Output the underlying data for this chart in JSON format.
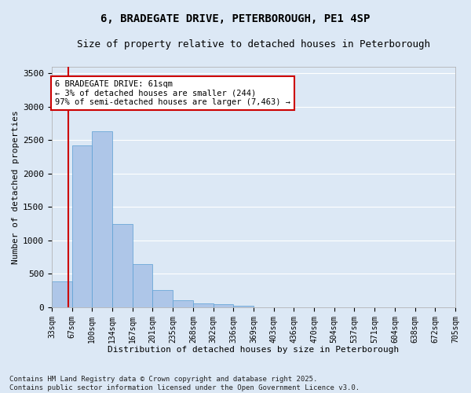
{
  "title": "6, BRADEGATE DRIVE, PETERBOROUGH, PE1 4SP",
  "subtitle": "Size of property relative to detached houses in Peterborough",
  "xlabel": "Distribution of detached houses by size in Peterborough",
  "ylabel": "Number of detached properties",
  "bar_values": [
    390,
    2420,
    2630,
    1250,
    650,
    260,
    105,
    55,
    40,
    20,
    0,
    0,
    0,
    0,
    0,
    0,
    0,
    0,
    0,
    0
  ],
  "categories": [
    "33sqm",
    "67sqm",
    "100sqm",
    "134sqm",
    "167sqm",
    "201sqm",
    "235sqm",
    "268sqm",
    "302sqm",
    "336sqm",
    "369sqm",
    "403sqm",
    "436sqm",
    "470sqm",
    "504sqm",
    "537sqm",
    "571sqm",
    "604sqm",
    "638sqm",
    "672sqm",
    "705sqm"
  ],
  "bar_color": "#aec6e8",
  "bar_edge_color": "#5a9fd4",
  "fig_bg_color": "#dce8f5",
  "ax_bg_color": "#dce8f5",
  "grid_color": "#ffffff",
  "property_line_color": "#cc0000",
  "property_line_x": 0.82,
  "annotation_text": "6 BRADEGATE DRIVE: 61sqm\n← 3% of detached houses are smaller (244)\n97% of semi-detached houses are larger (7,463) →",
  "annotation_box_facecolor": "#ffffff",
  "annotation_box_edgecolor": "#cc0000",
  "ylim": [
    0,
    3600
  ],
  "yticks": [
    0,
    500,
    1000,
    1500,
    2000,
    2500,
    3000,
    3500
  ],
  "footer": "Contains HM Land Registry data © Crown copyright and database right 2025.\nContains public sector information licensed under the Open Government Licence v3.0.",
  "title_fontsize": 10,
  "subtitle_fontsize": 9,
  "xlabel_fontsize": 8,
  "ylabel_fontsize": 8,
  "tick_fontsize": 7,
  "footer_fontsize": 6.5
}
